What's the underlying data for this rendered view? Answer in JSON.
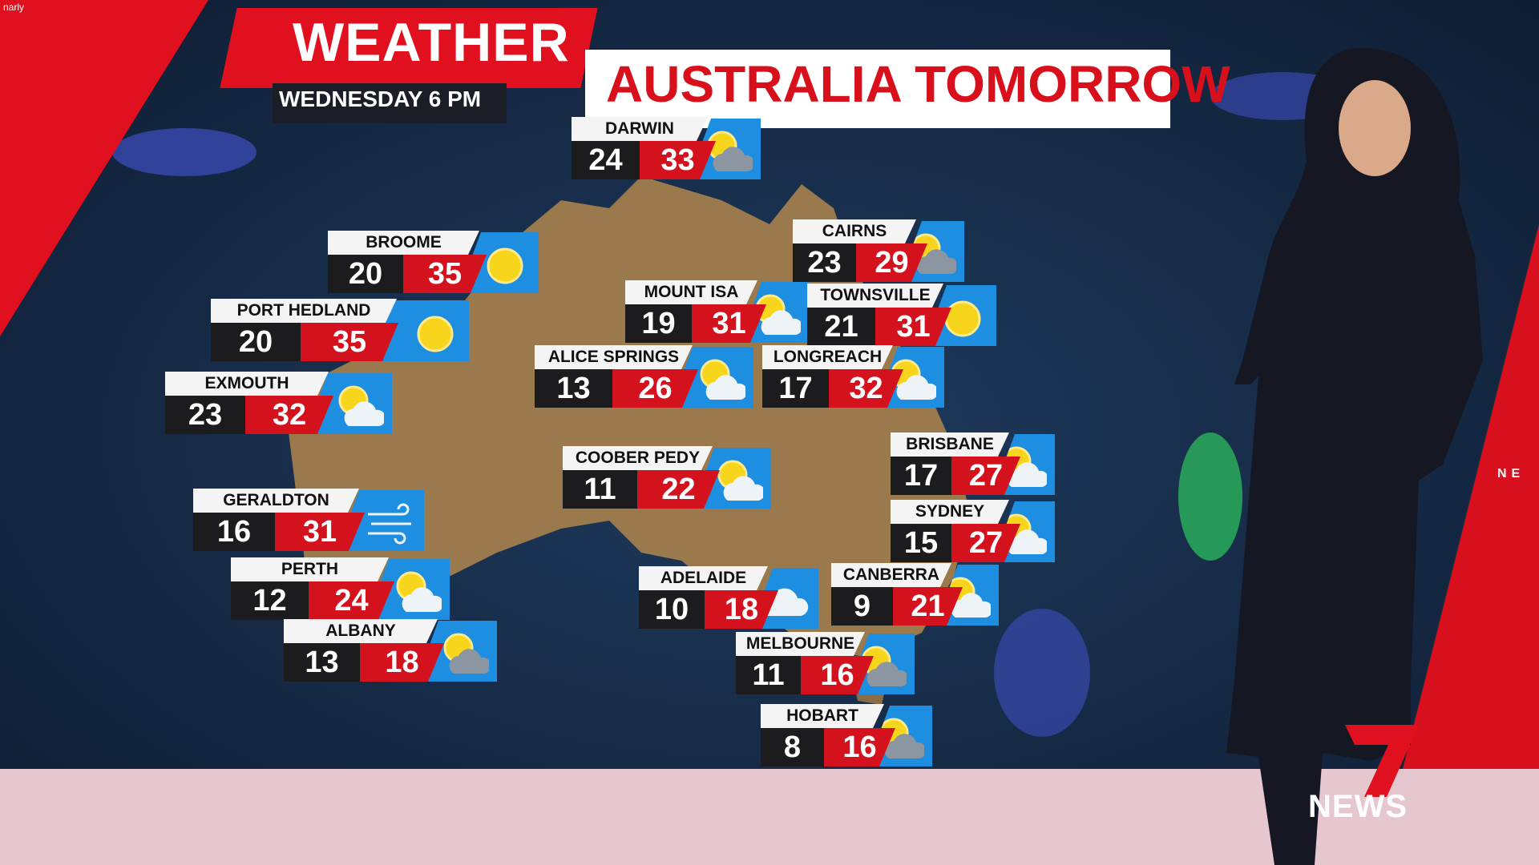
{
  "corner_tag": "narly",
  "header": {
    "title": "WEATHER",
    "subtitle": "AUSTRALIA TOMORROW",
    "date": "WEDNESDAY 6 PM"
  },
  "colors": {
    "title_red": "#e0101e",
    "max_red": "#d4121e",
    "min_black": "#1c1c1e",
    "icon_blue": "#1e8fe0",
    "sun": "#f7d51c"
  },
  "cities": [
    {
      "name": "DARWIN",
      "min": "24",
      "max": "33",
      "icon": "sun-grey-cloud-icon"
    },
    {
      "name": "BROOME",
      "min": "20",
      "max": "35",
      "icon": "sun-icon"
    },
    {
      "name": "PORT HEDLAND",
      "min": "20",
      "max": "35",
      "icon": "sun-icon"
    },
    {
      "name": "EXMOUTH",
      "min": "23",
      "max": "32",
      "icon": "sun-cloud-icon"
    },
    {
      "name": "GERALDTON",
      "min": "16",
      "max": "31",
      "icon": "wind-icon"
    },
    {
      "name": "PERTH",
      "min": "12",
      "max": "24",
      "icon": "sun-cloud-icon"
    },
    {
      "name": "ALBANY",
      "min": "13",
      "max": "18",
      "icon": "sun-grey-cloud-icon"
    },
    {
      "name": "ALICE SPRINGS",
      "min": "13",
      "max": "26",
      "icon": "sun-cloud-icon"
    },
    {
      "name": "MOUNT ISA",
      "min": "19",
      "max": "31",
      "icon": "sun-cloud-icon"
    },
    {
      "name": "CAIRNS",
      "min": "23",
      "max": "29",
      "icon": "sun-grey-cloud-icon"
    },
    {
      "name": "TOWNSVILLE",
      "min": "21",
      "max": "31",
      "icon": "sun-icon"
    },
    {
      "name": "LONGREACH",
      "min": "17",
      "max": "32",
      "icon": "sun-cloud-icon"
    },
    {
      "name": "COOBER PEDY",
      "min": "11",
      "max": "22",
      "icon": "sun-cloud-icon"
    },
    {
      "name": "BRISBANE",
      "min": "17",
      "max": "27",
      "icon": "sun-cloud-icon"
    },
    {
      "name": "SYDNEY",
      "min": "15",
      "max": "27",
      "icon": "sun-cloud-icon"
    },
    {
      "name": "ADELAIDE",
      "min": "10",
      "max": "18",
      "icon": "cloud-icon"
    },
    {
      "name": "CANBERRA",
      "min": "9",
      "max": "21",
      "icon": "sun-cloud-icon"
    },
    {
      "name": "MELBOURNE",
      "min": "11",
      "max": "16",
      "icon": "sun-grey-cloud-icon"
    },
    {
      "name": "HOBART",
      "min": "8",
      "max": "16",
      "icon": "sun-grey-cloud-icon"
    }
  ],
  "logo": {
    "text": "NEWS",
    "number": "7"
  },
  "edge_tag": "NE"
}
